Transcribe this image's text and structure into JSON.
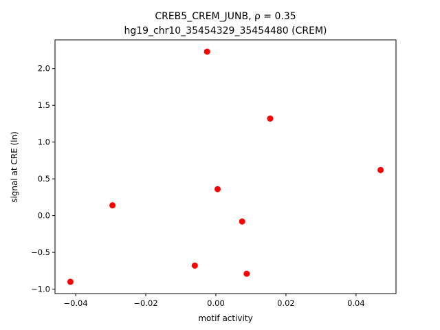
{
  "chart_data": {
    "type": "scatter",
    "title_line1": "CREB5_CREM_JUNB, ρ = 0.35",
    "title_line2": "hg19_chr10_35454329_35454480 (CREM)",
    "xlabel": "motif activity",
    "ylabel": "signal at CRE (ln)",
    "xlim": [
      -0.0459,
      0.0514
    ],
    "ylim": [
      -1.06,
      2.39
    ],
    "xticks": [
      -0.04,
      -0.02,
      0.0,
      0.02,
      0.04
    ],
    "xtick_labels": [
      "−0.04",
      "−0.02",
      "0.00",
      "0.02",
      "0.04"
    ],
    "yticks": [
      -1.0,
      -0.5,
      0.0,
      0.5,
      1.0,
      1.5,
      2.0
    ],
    "ytick_labels": [
      "−1.0",
      "−0.5",
      "0.0",
      "0.5",
      "1.0",
      "1.5",
      "2.0"
    ],
    "grid": false,
    "marker_color": "#ff0000",
    "points": [
      {
        "x": -0.0415,
        "y": -0.9
      },
      {
        "x": -0.0295,
        "y": 0.14
      },
      {
        "x": -0.006,
        "y": -0.68
      },
      {
        "x": -0.0025,
        "y": 2.23
      },
      {
        "x": 0.0005,
        "y": 0.36
      },
      {
        "x": 0.0075,
        "y": -0.08
      },
      {
        "x": 0.0088,
        "y": -0.79
      },
      {
        "x": 0.0155,
        "y": 1.32
      },
      {
        "x": 0.047,
        "y": 0.62
      }
    ]
  }
}
